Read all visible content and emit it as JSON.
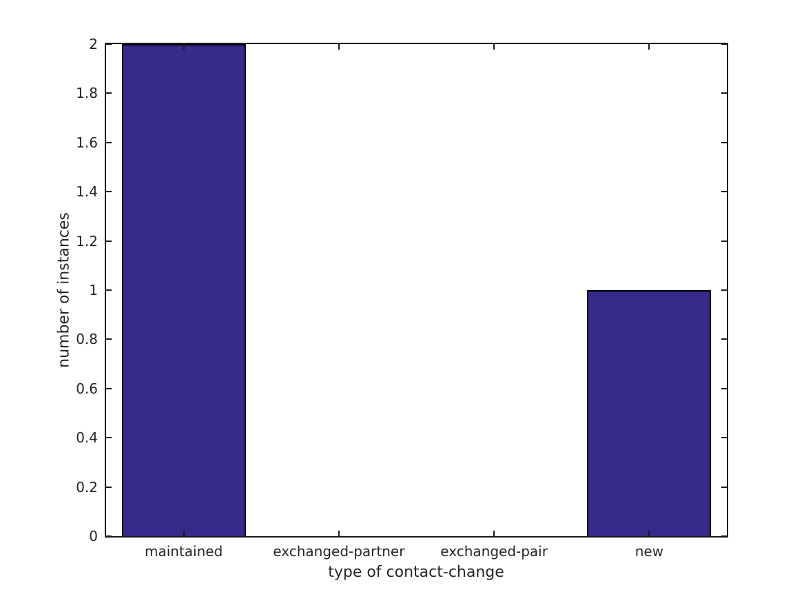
{
  "figure": {
    "background": "#ffffff",
    "text_color": "#262626",
    "axis_color": "#1a1a1a"
  },
  "chart_data": {
    "type": "bar",
    "title": "",
    "categories": [
      "maintained",
      "exchanged-partner",
      "exchanged-pair",
      "new"
    ],
    "values": [
      2,
      0,
      0,
      1
    ],
    "xlabel": "type of contact-change",
    "ylabel": "number of instances",
    "ylim": [
      0,
      2
    ],
    "ytick_step": 0.2,
    "ytick_labels": [
      "0",
      "0.2",
      "0.4",
      "0.6",
      "0.8",
      "1",
      "1.2",
      "1.4",
      "1.6",
      "1.8",
      "2"
    ],
    "bar_color": "#342b8a",
    "bar_edge_color": "#000000",
    "bar_width_fraction": 0.8,
    "grid": false,
    "legend_position": "none"
  }
}
